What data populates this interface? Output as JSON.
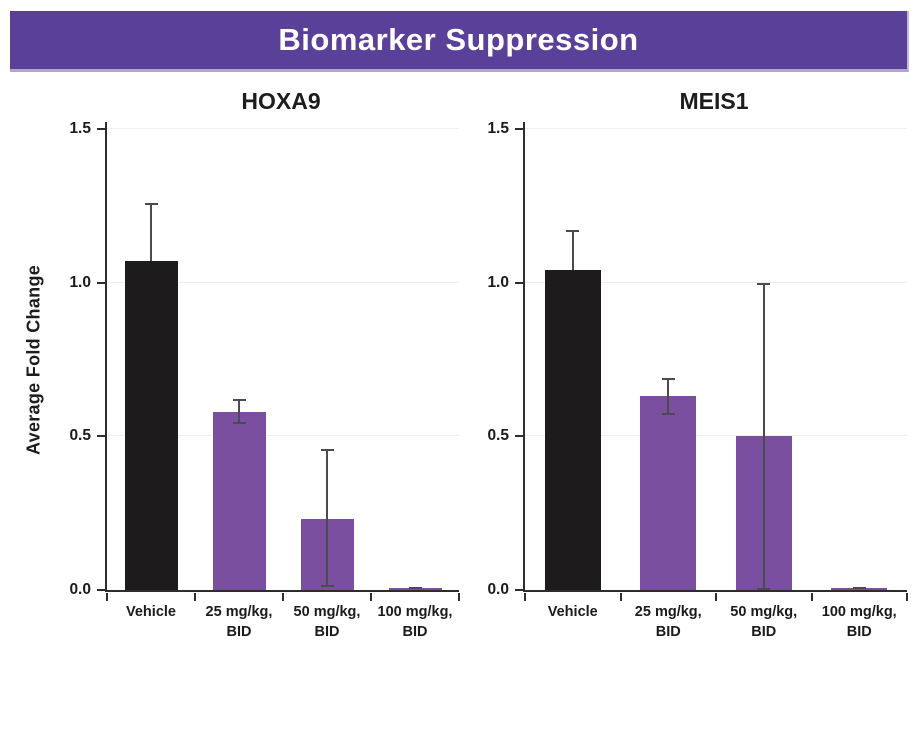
{
  "banner": {
    "title": "Biomarker Suppression",
    "bg_color": "#5a4098",
    "text_color": "#ffffff"
  },
  "chart_data": [
    {
      "type": "bar",
      "title": "HOXA9",
      "ylabel": "Average Fold Change",
      "ylim": [
        0,
        1.5
      ],
      "yticks": [
        0,
        0.5,
        1,
        1.5
      ],
      "ytick_labels": [
        "0.0",
        "0.5",
        "1.0",
        "1.5"
      ],
      "grid": "faint horizontal gridlines at 0.5, 1.0, 1.5",
      "legend": "none",
      "categories": [
        "Vehicle",
        "25 mg/kg, BID",
        "50 mg/kg, BID",
        "100 mg/kg, BID"
      ],
      "category_label_lines": [
        [
          "Vehicle"
        ],
        [
          "25 mg/kg,",
          "BID"
        ],
        [
          "50 mg/kg,",
          "BID"
        ],
        [
          "100 mg/kg,",
          "BID"
        ]
      ],
      "values": [
        1.07,
        0.58,
        0.23,
        0.005
      ],
      "errors_up": [
        0.19,
        0.04,
        0.23,
        0.005
      ],
      "errors_down": [
        0,
        0.04,
        0.22,
        0
      ],
      "bar_colors": [
        "#1d1b1b",
        "#7b4fa0",
        "#7b4fa0",
        "#7b4fa0"
      ]
    },
    {
      "type": "bar",
      "title": "MEIS1",
      "ylabel": "",
      "ylim": [
        0,
        1.5
      ],
      "yticks": [
        0,
        0.5,
        1,
        1.5
      ],
      "ytick_labels": [
        "0.0",
        "0.5",
        "1.0",
        "1.5"
      ],
      "grid": "faint horizontal gridlines at 0.5, 1.0, 1.5",
      "legend": "none",
      "categories": [
        "Vehicle",
        "25 mg/kg, BID",
        "50 mg/kg, BID",
        "100 mg/kg, BID"
      ],
      "category_label_lines": [
        [
          "Vehicle"
        ],
        [
          "25 mg/kg,",
          "BID"
        ],
        [
          "50 mg/kg,",
          "BID"
        ],
        [
          "100 mg/kg,",
          "BID"
        ]
      ],
      "values": [
        1.04,
        0.63,
        0.5,
        0.005
      ],
      "errors_up": [
        0.13,
        0.06,
        0.5,
        0.005
      ],
      "errors_down": [
        0,
        0.06,
        0.5,
        0
      ],
      "bar_colors": [
        "#1d1b1b",
        "#7b4fa0",
        "#7b4fa0",
        "#7b4fa0"
      ]
    }
  ],
  "colors": {
    "bar_black": "#1d1b1b",
    "bar_purple": "#7b4fa0",
    "axis": "#2d2d2d",
    "error_bar": "#4a4a50",
    "gridline": "#f0eef2",
    "background": "#ffffff"
  }
}
